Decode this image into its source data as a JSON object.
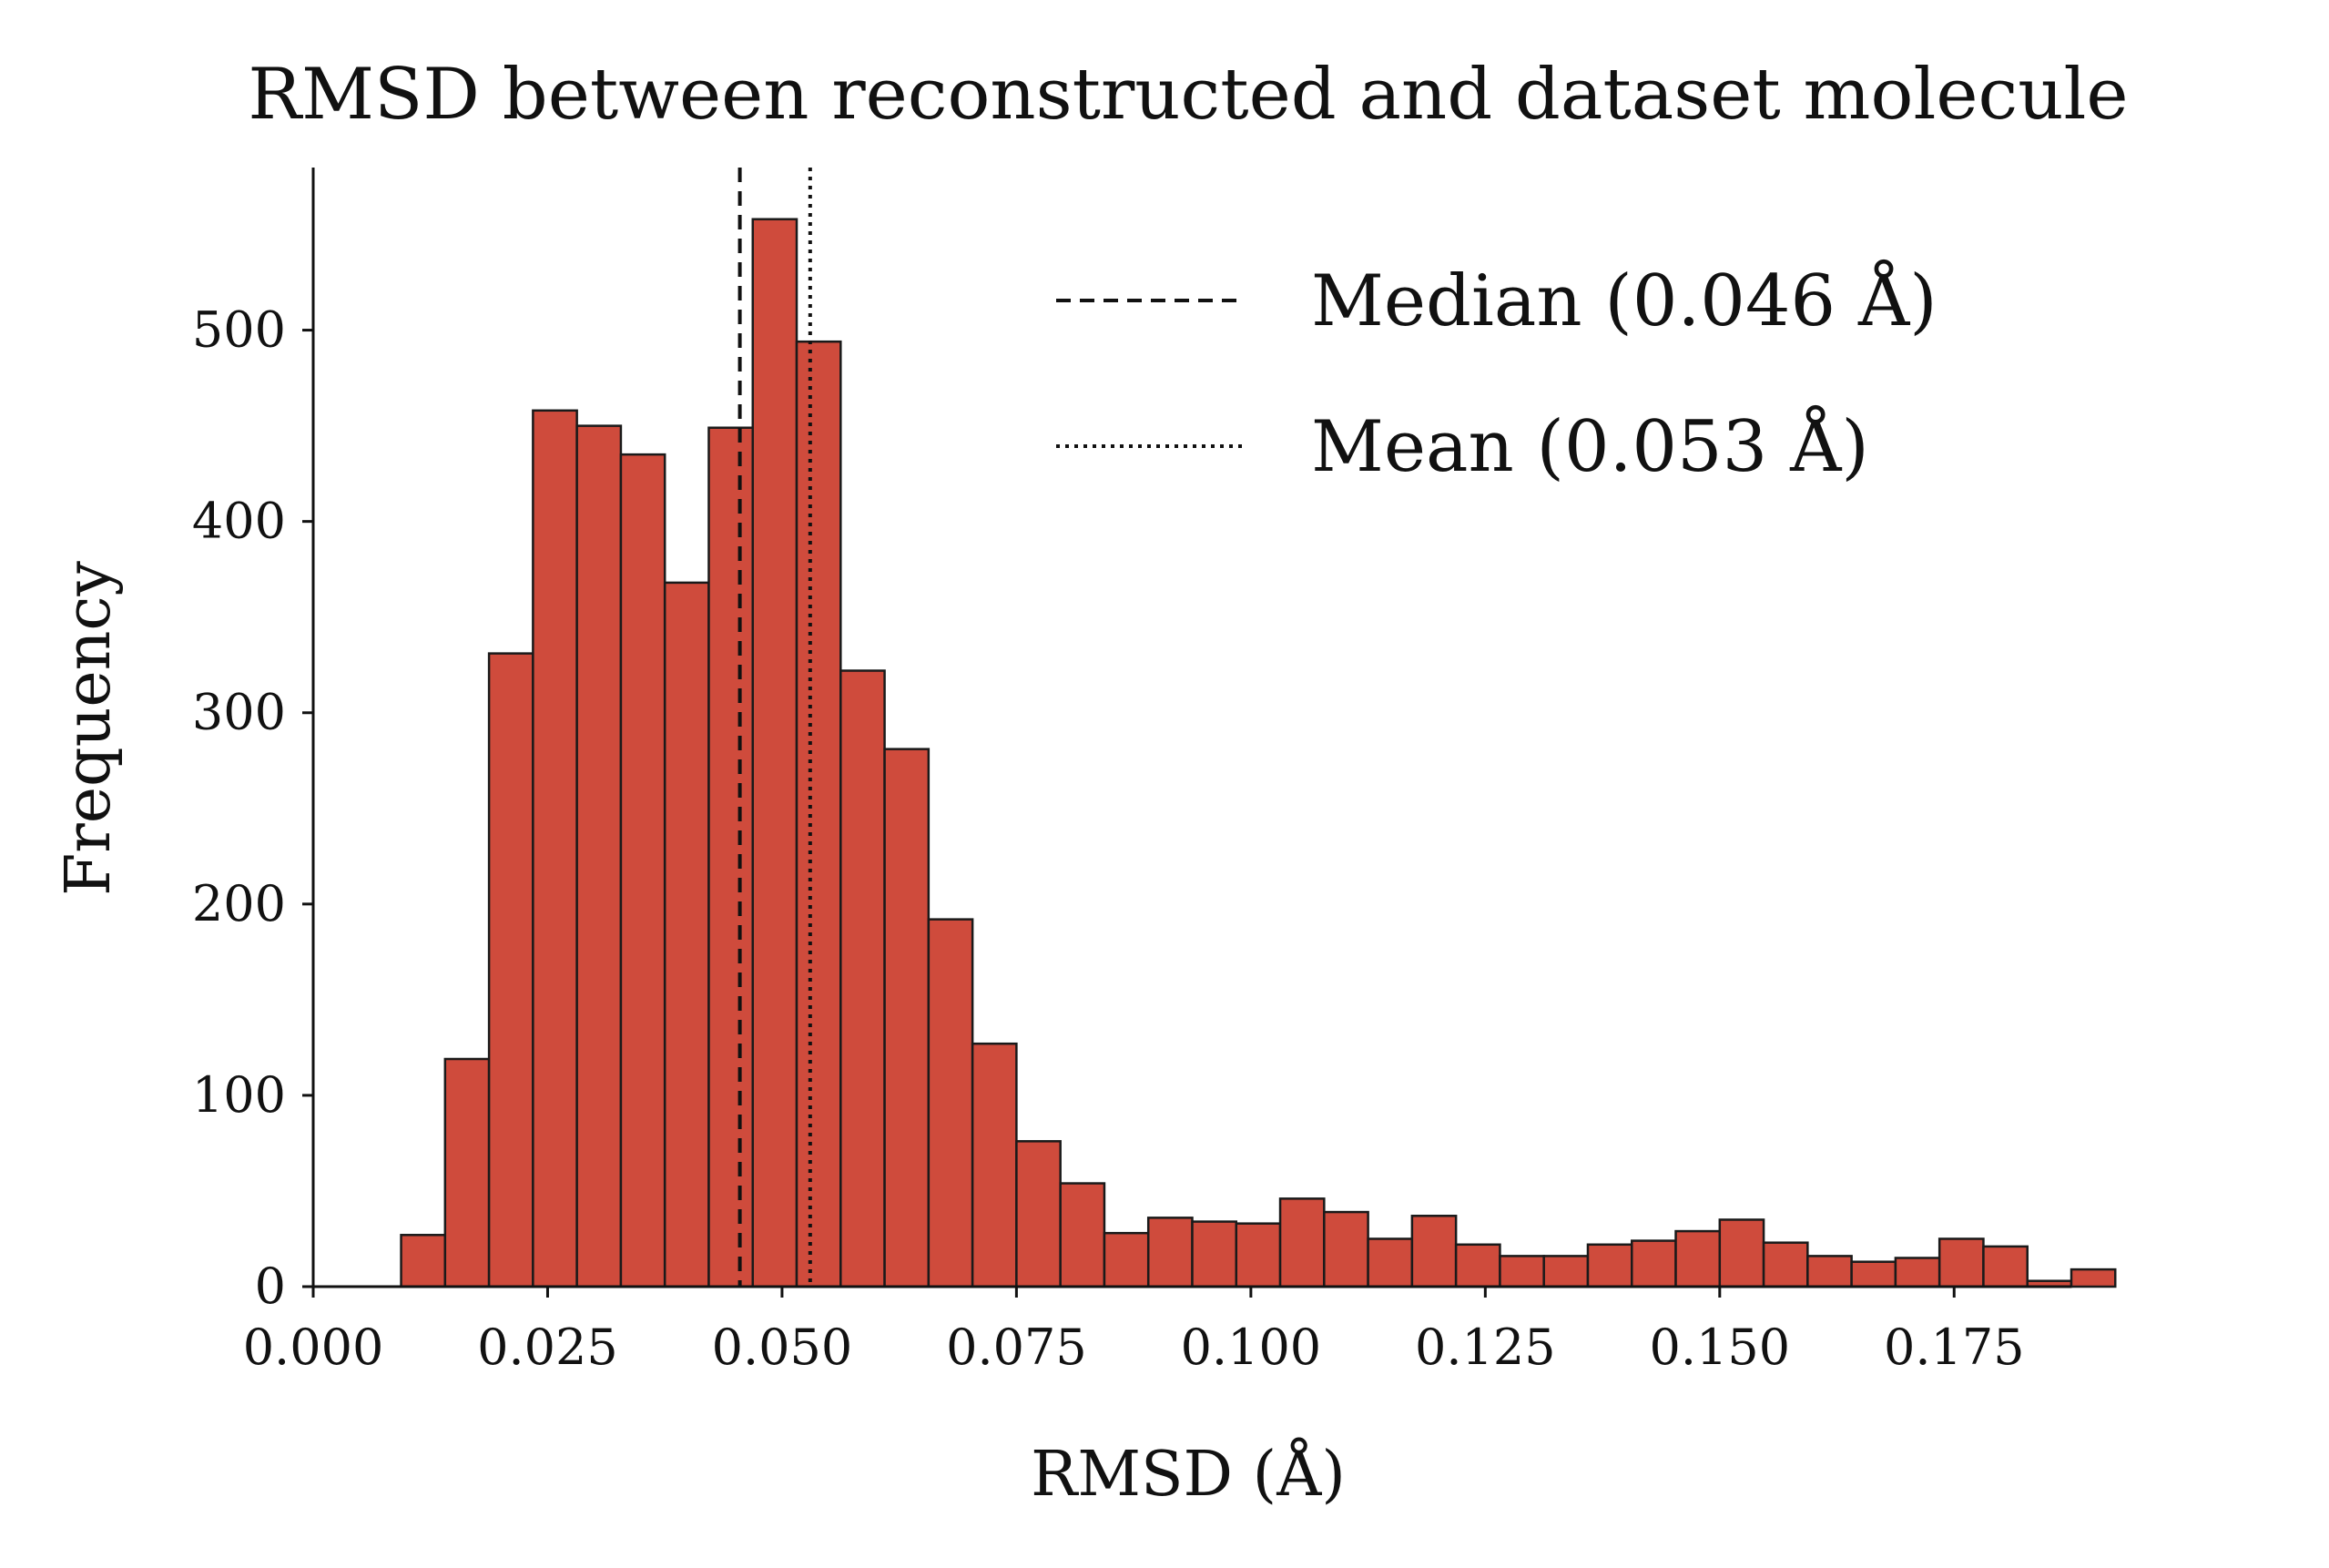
{
  "chart_data": {
    "type": "bar",
    "subtype": "histogram",
    "title": "RMSD between reconstructed and dataset molecule",
    "xlabel": "RMSD (Å)",
    "ylabel": "Frequency",
    "xlim": [
      0.0,
      0.1875
    ],
    "ylim": [
      0,
      585
    ],
    "bin_width": 0.0046875,
    "bin_start": 0.0,
    "values": [
      0,
      0,
      27,
      119,
      331,
      458,
      450,
      435,
      368,
      449,
      558,
      494,
      322,
      281,
      192,
      127,
      76,
      54,
      28,
      36,
      34,
      33,
      46,
      39,
      25,
      37,
      22,
      16,
      16,
      22,
      24,
      29,
      35,
      23,
      16,
      13,
      15,
      25,
      21,
      3,
      9
    ],
    "bar_color": "#CF4B3C",
    "edge_color": "#1a1a1a",
    "x_ticks": [
      "0.000",
      "0.025",
      "0.050",
      "0.075",
      "0.100",
      "0.125",
      "0.150",
      "0.175"
    ],
    "x_tick_values": [
      0.0,
      0.025,
      0.05,
      0.075,
      0.1,
      0.125,
      0.15,
      0.175
    ],
    "y_ticks": [
      "0",
      "100",
      "200",
      "300",
      "400",
      "500"
    ],
    "y_tick_values": [
      0,
      100,
      200,
      300,
      400,
      500
    ],
    "reference_lines": [
      {
        "name": "median",
        "value": 0.0455,
        "style": "dashed",
        "label": "Median (0.046 Å)"
      },
      {
        "name": "mean",
        "value": 0.053,
        "style": "dotted",
        "label": "Mean (0.053 Å)"
      }
    ],
    "legend_position": "top-right"
  }
}
